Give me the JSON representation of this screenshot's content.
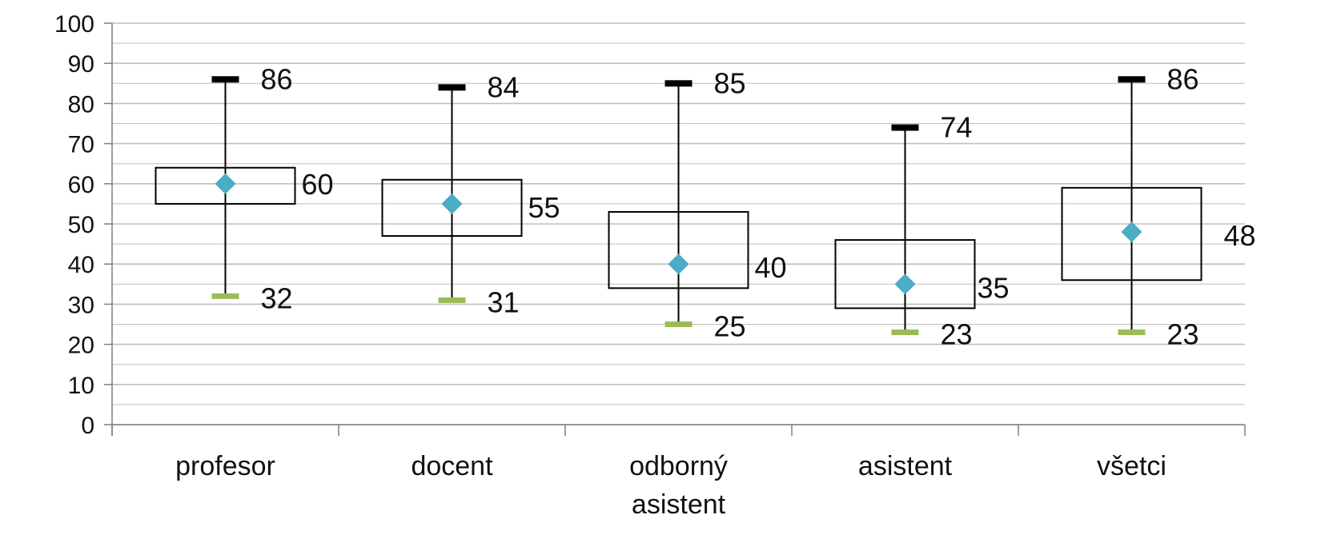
{
  "chart_data": {
    "type": "box",
    "categories": [
      "profesor",
      "docent",
      "odborný asistent",
      "asistent",
      "všetci"
    ],
    "series": [
      {
        "values": [
          {
            "min": 32,
            "q1": 55,
            "median": 60,
            "q3": 64,
            "max": 86
          },
          {
            "min": 31,
            "q1": 47,
            "median": 55,
            "q3": 61,
            "max": 84
          },
          {
            "min": 25,
            "q1": 34,
            "median": 40,
            "q3": 53,
            "max": 85
          },
          {
            "min": 23,
            "q1": 29,
            "median": 35,
            "q3": 46,
            "max": 74
          },
          {
            "min": 23,
            "q1": 36,
            "median": 48,
            "q3": 59,
            "max": 86
          }
        ]
      }
    ],
    "labels": {
      "max": [
        "86",
        "84",
        "85",
        "74",
        "86"
      ],
      "median": [
        "60",
        "55",
        "40",
        "35",
        "48"
      ],
      "min": [
        "32",
        "31",
        "25",
        "23",
        "23"
      ]
    },
    "ylim": [
      0,
      100
    ],
    "yticks": [
      "0",
      "10",
      "20",
      "30",
      "40",
      "50",
      "60",
      "70",
      "80",
      "90",
      "100"
    ],
    "grid": true,
    "colors": {
      "median_marker": "#4bacc6",
      "min_marker": "#9bbb59",
      "max_marker": "#000000",
      "box_stroke": "#000000",
      "grid": "#bfbfbf"
    },
    "xlabel": "",
    "ylabel": "",
    "title": ""
  }
}
